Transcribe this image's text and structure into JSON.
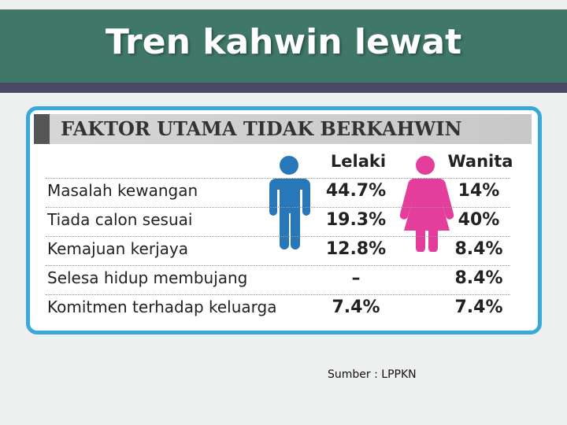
{
  "header": {
    "title": "Tren kahwin lewat"
  },
  "panel": {
    "title": "FAKTOR UTAMA TIDAK BERKAHWIN"
  },
  "table": {
    "columns": [
      "Lelaki",
      "Wanita"
    ],
    "rows": [
      [
        "Masalah kewangan",
        "44.7%",
        "14%"
      ],
      [
        "Tiada calon sesuai",
        "19.3%",
        "40%"
      ],
      [
        "Kemajuan kerjaya",
        "12.8%",
        "8.4%"
      ],
      [
        "Selesa hidup membujang",
        "–",
        "8.4%"
      ],
      [
        "Komitmen terhadap keluarga",
        "7.4%",
        "7.4%"
      ]
    ]
  },
  "source": "Sumber : LPPKN"
}
